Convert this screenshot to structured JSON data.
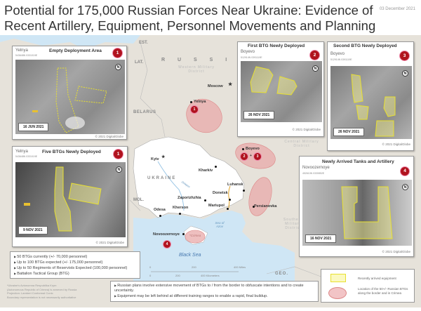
{
  "title": "Potential for 175,000 Russian Forces Near Ukraine: Evidence of Recent Artillery, Equipment, Personnel Movements and Planning",
  "date": "03 December 2021",
  "colors": {
    "badge": "#b0131e",
    "ellipse": "#e8a9aa",
    "equipment": "#f3f08a",
    "ukraine": "#ffffff",
    "land": "#e6e2da",
    "sea": "#cfe6f5"
  },
  "map": {
    "countries": {
      "russia": "R U S S I A",
      "belarus": "BELARUS",
      "ukraine": "UKRAINE",
      "est": "EST.",
      "lat": "LAT.",
      "mol": "MOL.",
      "geo": "GEO."
    },
    "districts": {
      "western": "Western Military District",
      "central": "Central Military District",
      "southern": "Southern Military District"
    },
    "water": {
      "black_sea": "Black Sea",
      "azov": "Sea of Azov",
      "dnieper": "Dnieper",
      "crimea": "*Crimea"
    },
    "cities": {
      "moscow": "Moscow",
      "yelnya": "Yelnya",
      "boyevo": "Boyevo",
      "kyiv": "Kyiv",
      "kharkiv": "Kharkiv",
      "luhansk": "Luhansk",
      "donetsk": "Donetsk",
      "mariupol": "Mariupol",
      "zaporizhzhia": "Zaporizhzhia",
      "kherson": "Kherson",
      "odesa": "Odesa",
      "persianovka": "Persianovka",
      "novoozernoye": "Novoozernoye"
    },
    "markers": [
      "1",
      "2",
      "3",
      "4"
    ],
    "plus": "+",
    "scale": {
      "miles": [
        "0",
        "200",
        "400 Miles"
      ],
      "km": [
        "0",
        "200",
        "400 Kilometers"
      ]
    }
  },
  "panels": [
    {
      "title": "Empty Deployment Area",
      "location": "Yelnya",
      "coord": "543648N 0331019E",
      "badge": "1",
      "date": "16 JUN 2021",
      "copyright": "© 2021 DigitalGlobe"
    },
    {
      "title": "Five BTGs Newly Deployed",
      "location": "Yelnya",
      "coord": "543648N 0331019E",
      "badge": "1",
      "date": "9 NOV 2021",
      "copyright": "© 2021 DigitalGlobe"
    },
    {
      "title": "First BTG Newly Deployed",
      "location": "Boyevo",
      "coord": "512914N 0391119E",
      "badge": "2",
      "date": "26 NOV 2021",
      "copyright": "© 2021 DigitalGlobe"
    },
    {
      "title": "Second BTG Newly Deployed",
      "location": "Boyevo",
      "coord": "512914N 0391119E",
      "badge": "3",
      "date": "26 NOV 2021",
      "copyright": "© 2021 DigitalGlobe"
    },
    {
      "title": "Newly Arrived Tanks and Artillery",
      "location": "Novoozernoye",
      "coord": "452610N 0330852E",
      "badge": "4",
      "date": "16 NOV 2021",
      "copyright": "© 2021 DigitalGlobe"
    }
  ],
  "north": "N",
  "bullets": [
    "50 BTGs currently (+/- 70,000 personnel)",
    "Up to 100 BTGs expected (+/- 175,000 personnel)",
    "Up to 50 Regiments of Reservists Expected (100,000 personnel)",
    "Battalion Tactical Group (BTG)"
  ],
  "plans": [
    "Russian plans involve extensive movement of BTGs to / from the border to obfuscate intentions and to create uncertainty.",
    "Equipment may be left behind at different training ranges to enable a rapid, final buildup."
  ],
  "footnote": [
    "*Ukraine's Avtonomna Respublika Krym",
    "(Autonomous Republic of Crimea) is annexed by Russia",
    "Projection: Lambert Conformal Conic",
    "Boundary representation is not necessarily authoritative"
  ],
  "legend": {
    "equipment": "Recently arrived equipment",
    "btg": "Location of the 50+/- Russian BTGs along the border and in Crimea"
  }
}
